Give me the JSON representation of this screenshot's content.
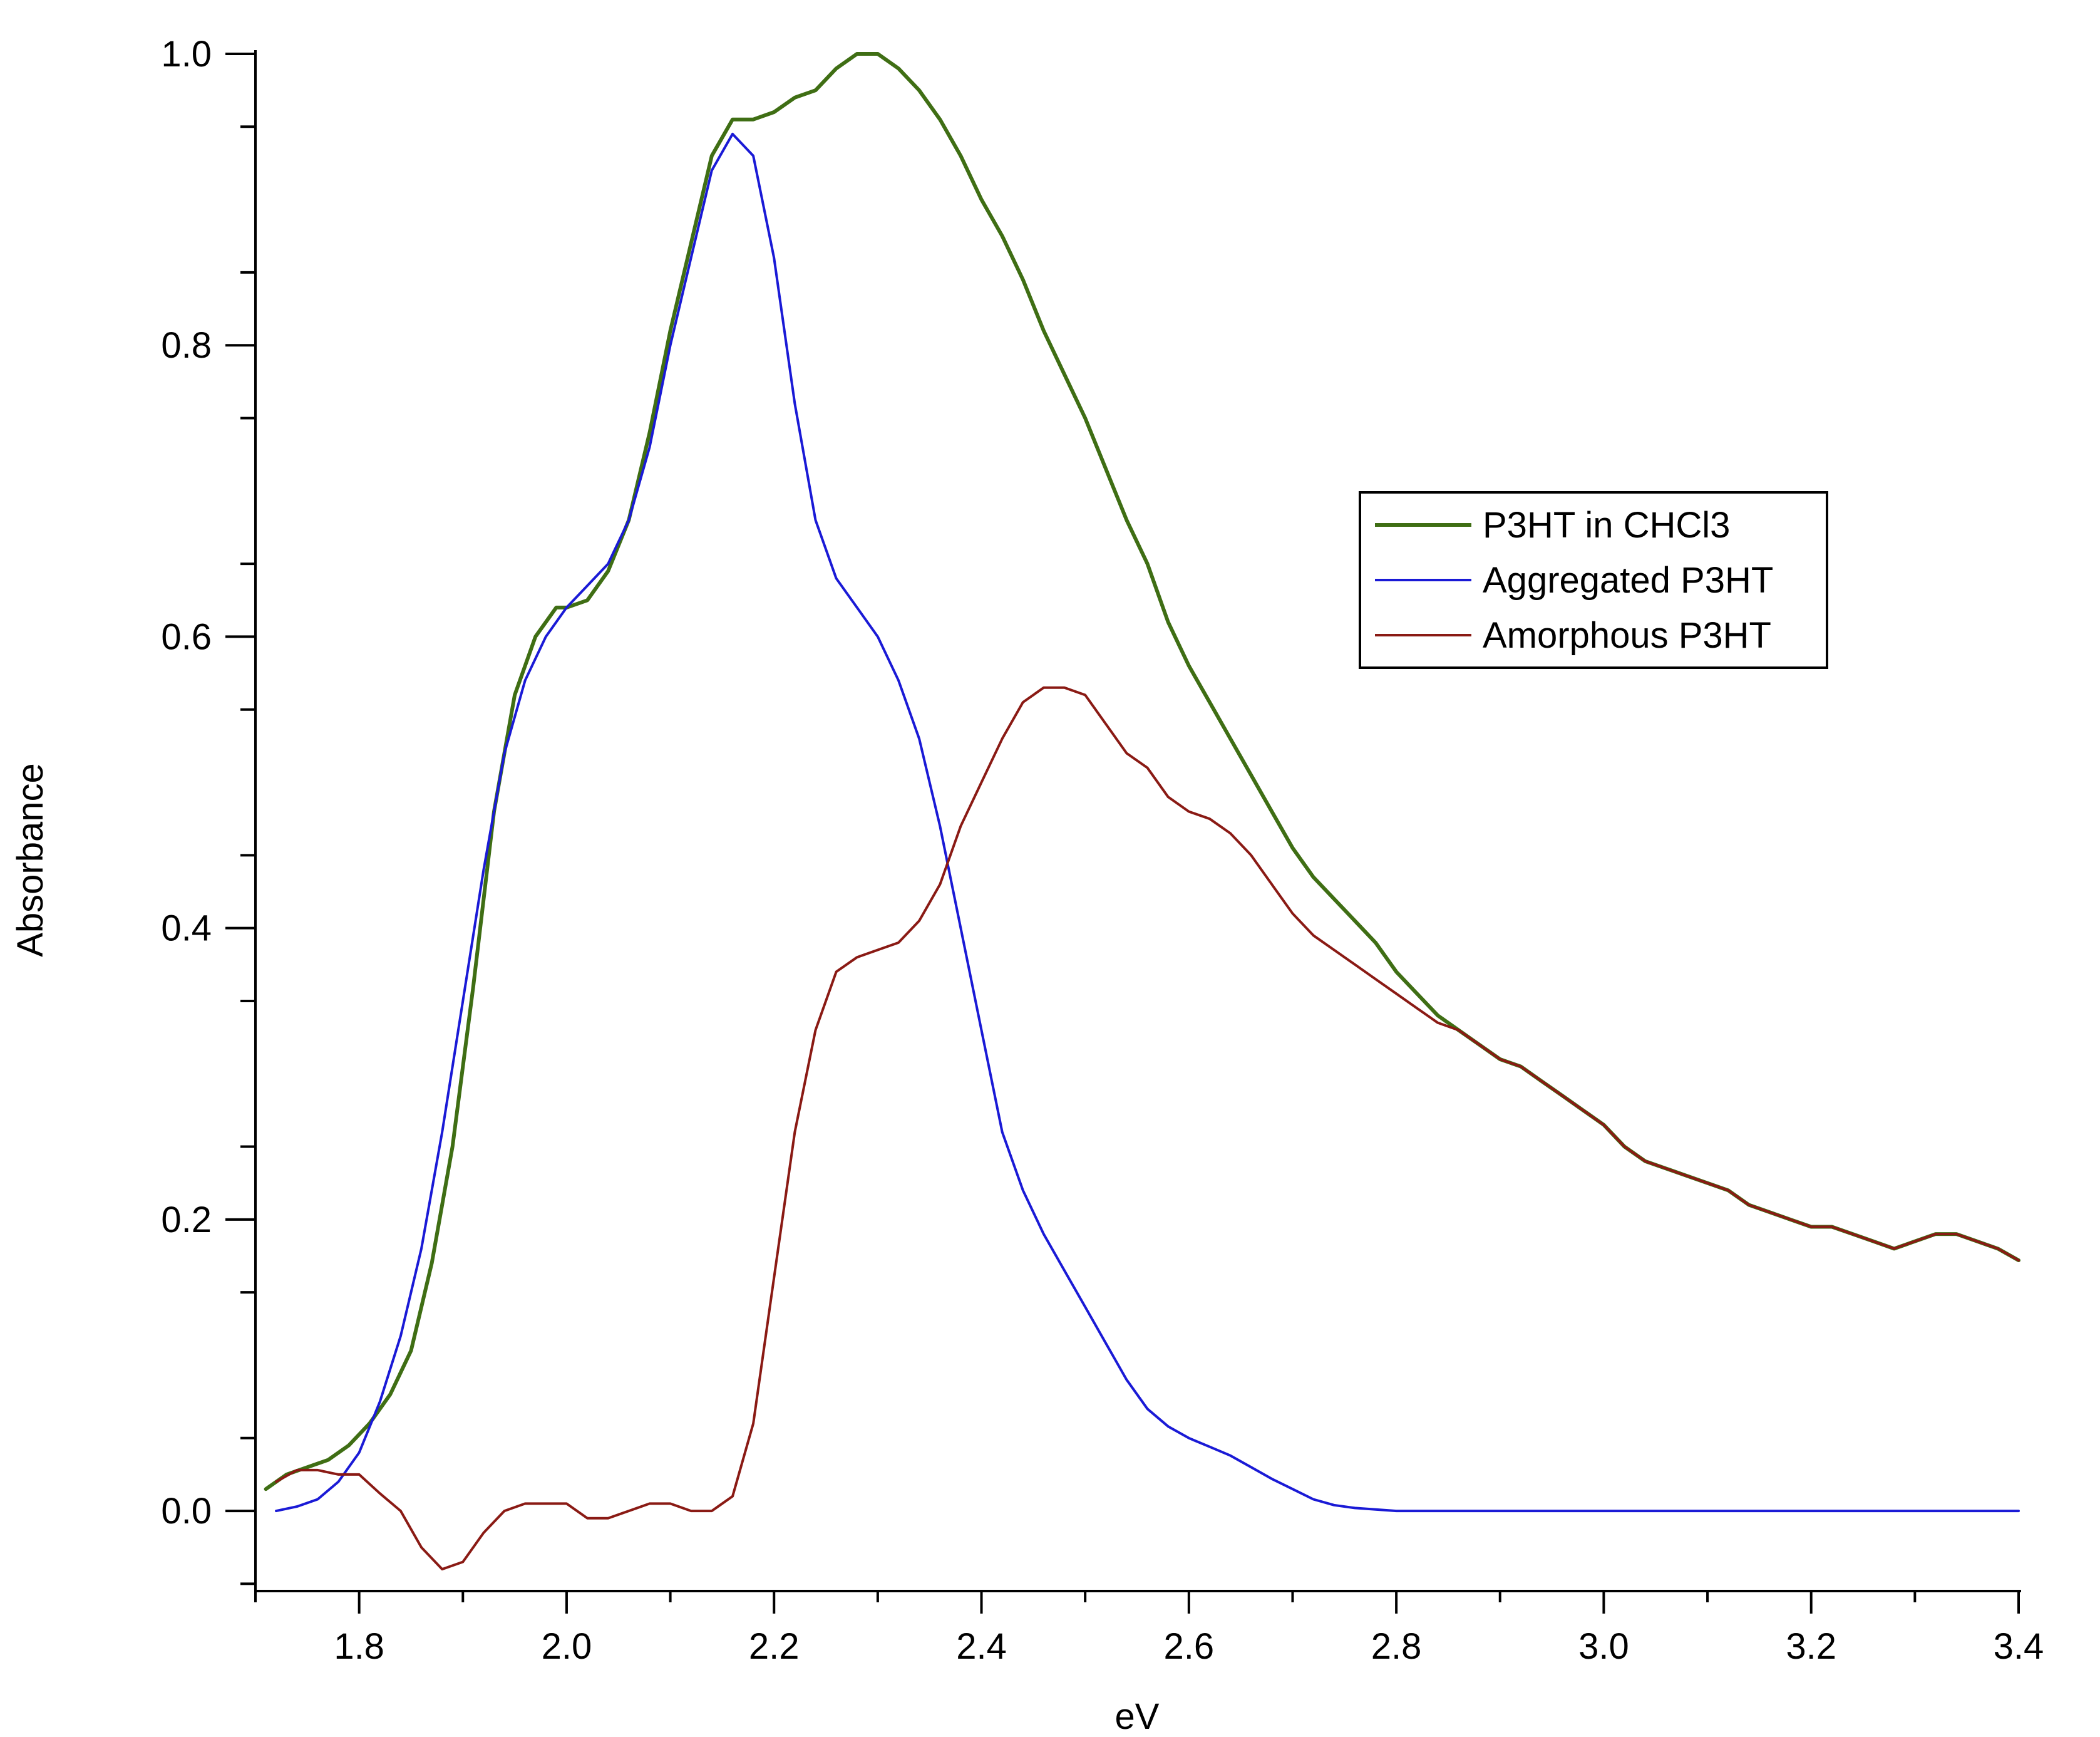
{
  "chart_data": {
    "type": "line",
    "title": "",
    "xlabel": "eV",
    "ylabel": "Absorbance",
    "xlim": [
      1.7,
      3.4
    ],
    "ylim": [
      -0.055,
      1.0
    ],
    "xticks": [
      1.8,
      2.0,
      2.2,
      2.4,
      2.6,
      2.8,
      3.0,
      3.2,
      3.4
    ],
    "xtick_labels": [
      "1.8",
      "2.0",
      "2.2",
      "2.4",
      "2.6",
      "2.8",
      "3.0",
      "3.2",
      "3.4"
    ],
    "yticks": [
      0.0,
      0.2,
      0.4,
      0.6,
      0.8,
      1.0
    ],
    "ytick_labels": [
      "0.0",
      "0.2",
      "0.4",
      "0.6",
      "0.8",
      "1.0"
    ],
    "grid": false,
    "legend_position": "center-right",
    "series": [
      {
        "name": "P3HT in CHCl3",
        "color": "#3f6e14",
        "x": [
          1.71,
          1.73,
          1.75,
          1.77,
          1.79,
          1.81,
          1.83,
          1.85,
          1.87,
          1.89,
          1.91,
          1.93,
          1.95,
          1.97,
          1.99,
          2.0,
          2.02,
          2.04,
          2.06,
          2.08,
          2.1,
          2.12,
          2.14,
          2.16,
          2.18,
          2.2,
          2.22,
          2.24,
          2.26,
          2.28,
          2.3,
          2.32,
          2.34,
          2.36,
          2.38,
          2.4,
          2.42,
          2.44,
          2.46,
          2.48,
          2.5,
          2.52,
          2.54,
          2.56,
          2.58,
          2.6,
          2.62,
          2.64,
          2.66,
          2.68,
          2.7,
          2.72,
          2.74,
          2.76,
          2.78,
          2.8,
          2.82,
          2.84,
          2.86,
          2.88,
          2.9,
          2.92,
          2.94,
          2.96,
          2.98,
          3.0,
          3.02,
          3.04,
          3.06,
          3.08,
          3.1,
          3.12,
          3.14,
          3.16,
          3.18,
          3.2,
          3.22,
          3.24,
          3.26,
          3.28,
          3.3,
          3.32,
          3.34,
          3.36,
          3.38,
          3.4
        ],
        "y": [
          0.015,
          0.025,
          0.03,
          0.035,
          0.045,
          0.06,
          0.08,
          0.11,
          0.17,
          0.25,
          0.36,
          0.48,
          0.56,
          0.6,
          0.62,
          0.62,
          0.625,
          0.645,
          0.68,
          0.74,
          0.81,
          0.87,
          0.93,
          0.955,
          0.955,
          0.96,
          0.97,
          0.975,
          0.99,
          1.0,
          1.0,
          0.99,
          0.975,
          0.955,
          0.93,
          0.9,
          0.875,
          0.845,
          0.81,
          0.78,
          0.75,
          0.715,
          0.68,
          0.65,
          0.61,
          0.58,
          0.555,
          0.53,
          0.505,
          0.48,
          0.455,
          0.435,
          0.42,
          0.405,
          0.39,
          0.37,
          0.355,
          0.34,
          0.33,
          0.32,
          0.31,
          0.305,
          0.295,
          0.285,
          0.275,
          0.265,
          0.25,
          0.24,
          0.235,
          0.23,
          0.225,
          0.22,
          0.21,
          0.205,
          0.2,
          0.195,
          0.195,
          0.19,
          0.185,
          0.18,
          0.185,
          0.19,
          0.19,
          0.185,
          0.18,
          0.172
        ]
      },
      {
        "name": "Aggregated P3HT",
        "color": "#1a1ad6",
        "x": [
          1.72,
          1.74,
          1.76,
          1.78,
          1.8,
          1.82,
          1.84,
          1.86,
          1.88,
          1.9,
          1.92,
          1.94,
          1.96,
          1.98,
          2.0,
          2.02,
          2.04,
          2.06,
          2.08,
          2.1,
          2.12,
          2.14,
          2.16,
          2.18,
          2.2,
          2.22,
          2.24,
          2.26,
          2.28,
          2.3,
          2.32,
          2.34,
          2.36,
          2.38,
          2.4,
          2.42,
          2.44,
          2.46,
          2.48,
          2.5,
          2.52,
          2.54,
          2.56,
          2.58,
          2.6,
          2.62,
          2.64,
          2.66,
          2.68,
          2.7,
          2.72,
          2.74,
          2.76,
          2.78,
          2.8,
          2.82,
          2.84,
          2.86,
          2.88,
          2.9,
          2.92,
          2.94,
          3.0,
          3.1,
          3.2,
          3.3,
          3.4
        ],
        "y": [
          0.0,
          0.003,
          0.008,
          0.02,
          0.04,
          0.075,
          0.12,
          0.18,
          0.26,
          0.35,
          0.44,
          0.52,
          0.57,
          0.6,
          0.62,
          0.635,
          0.65,
          0.68,
          0.73,
          0.8,
          0.86,
          0.92,
          0.945,
          0.93,
          0.86,
          0.76,
          0.68,
          0.64,
          0.62,
          0.6,
          0.57,
          0.53,
          0.47,
          0.4,
          0.33,
          0.26,
          0.22,
          0.19,
          0.165,
          0.14,
          0.115,
          0.09,
          0.07,
          0.058,
          0.05,
          0.044,
          0.038,
          0.03,
          0.022,
          0.015,
          0.008,
          0.004,
          0.002,
          0.001,
          0.0,
          0.0,
          0.0,
          0.0,
          0.0,
          0.0,
          0.0,
          0.0,
          0.0,
          0.0,
          0.0,
          0.0,
          0.0
        ]
      },
      {
        "name": "Amorphous P3HT",
        "color": "#8a1a14",
        "x": [
          1.72,
          1.74,
          1.76,
          1.78,
          1.8,
          1.82,
          1.84,
          1.86,
          1.88,
          1.9,
          1.92,
          1.94,
          1.96,
          1.98,
          2.0,
          2.02,
          2.04,
          2.06,
          2.08,
          2.1,
          2.12,
          2.14,
          2.16,
          2.18,
          2.2,
          2.22,
          2.24,
          2.26,
          2.28,
          2.3,
          2.32,
          2.34,
          2.36,
          2.38,
          2.4,
          2.42,
          2.44,
          2.46,
          2.48,
          2.5,
          2.52,
          2.54,
          2.56,
          2.58,
          2.6,
          2.62,
          2.64,
          2.66,
          2.68,
          2.7,
          2.72,
          2.74,
          2.76,
          2.78,
          2.8,
          2.82,
          2.84,
          2.86,
          2.88,
          2.9,
          2.92,
          2.94,
          2.96,
          2.98,
          3.0,
          3.02,
          3.04,
          3.06,
          3.08,
          3.1,
          3.12,
          3.14,
          3.16,
          3.18,
          3.2,
          3.22,
          3.24,
          3.26,
          3.28,
          3.3,
          3.32,
          3.34,
          3.36,
          3.38,
          3.4
        ],
        "y": [
          0.02,
          0.028,
          0.028,
          0.025,
          0.025,
          0.012,
          0.0,
          -0.025,
          -0.04,
          -0.035,
          -0.015,
          0.0,
          0.005,
          0.005,
          0.005,
          -0.005,
          -0.005,
          0.0,
          0.005,
          0.005,
          0.0,
          0.0,
          0.01,
          0.06,
          0.16,
          0.26,
          0.33,
          0.37,
          0.38,
          0.385,
          0.39,
          0.405,
          0.43,
          0.47,
          0.5,
          0.53,
          0.555,
          0.565,
          0.565,
          0.56,
          0.54,
          0.52,
          0.51,
          0.49,
          0.48,
          0.475,
          0.465,
          0.45,
          0.43,
          0.41,
          0.395,
          0.385,
          0.375,
          0.365,
          0.355,
          0.345,
          0.335,
          0.33,
          0.32,
          0.31,
          0.305,
          0.295,
          0.285,
          0.275,
          0.265,
          0.25,
          0.24,
          0.235,
          0.23,
          0.225,
          0.22,
          0.21,
          0.205,
          0.2,
          0.195,
          0.195,
          0.19,
          0.185,
          0.18,
          0.185,
          0.19,
          0.19,
          0.185,
          0.18,
          0.172
        ]
      }
    ]
  }
}
